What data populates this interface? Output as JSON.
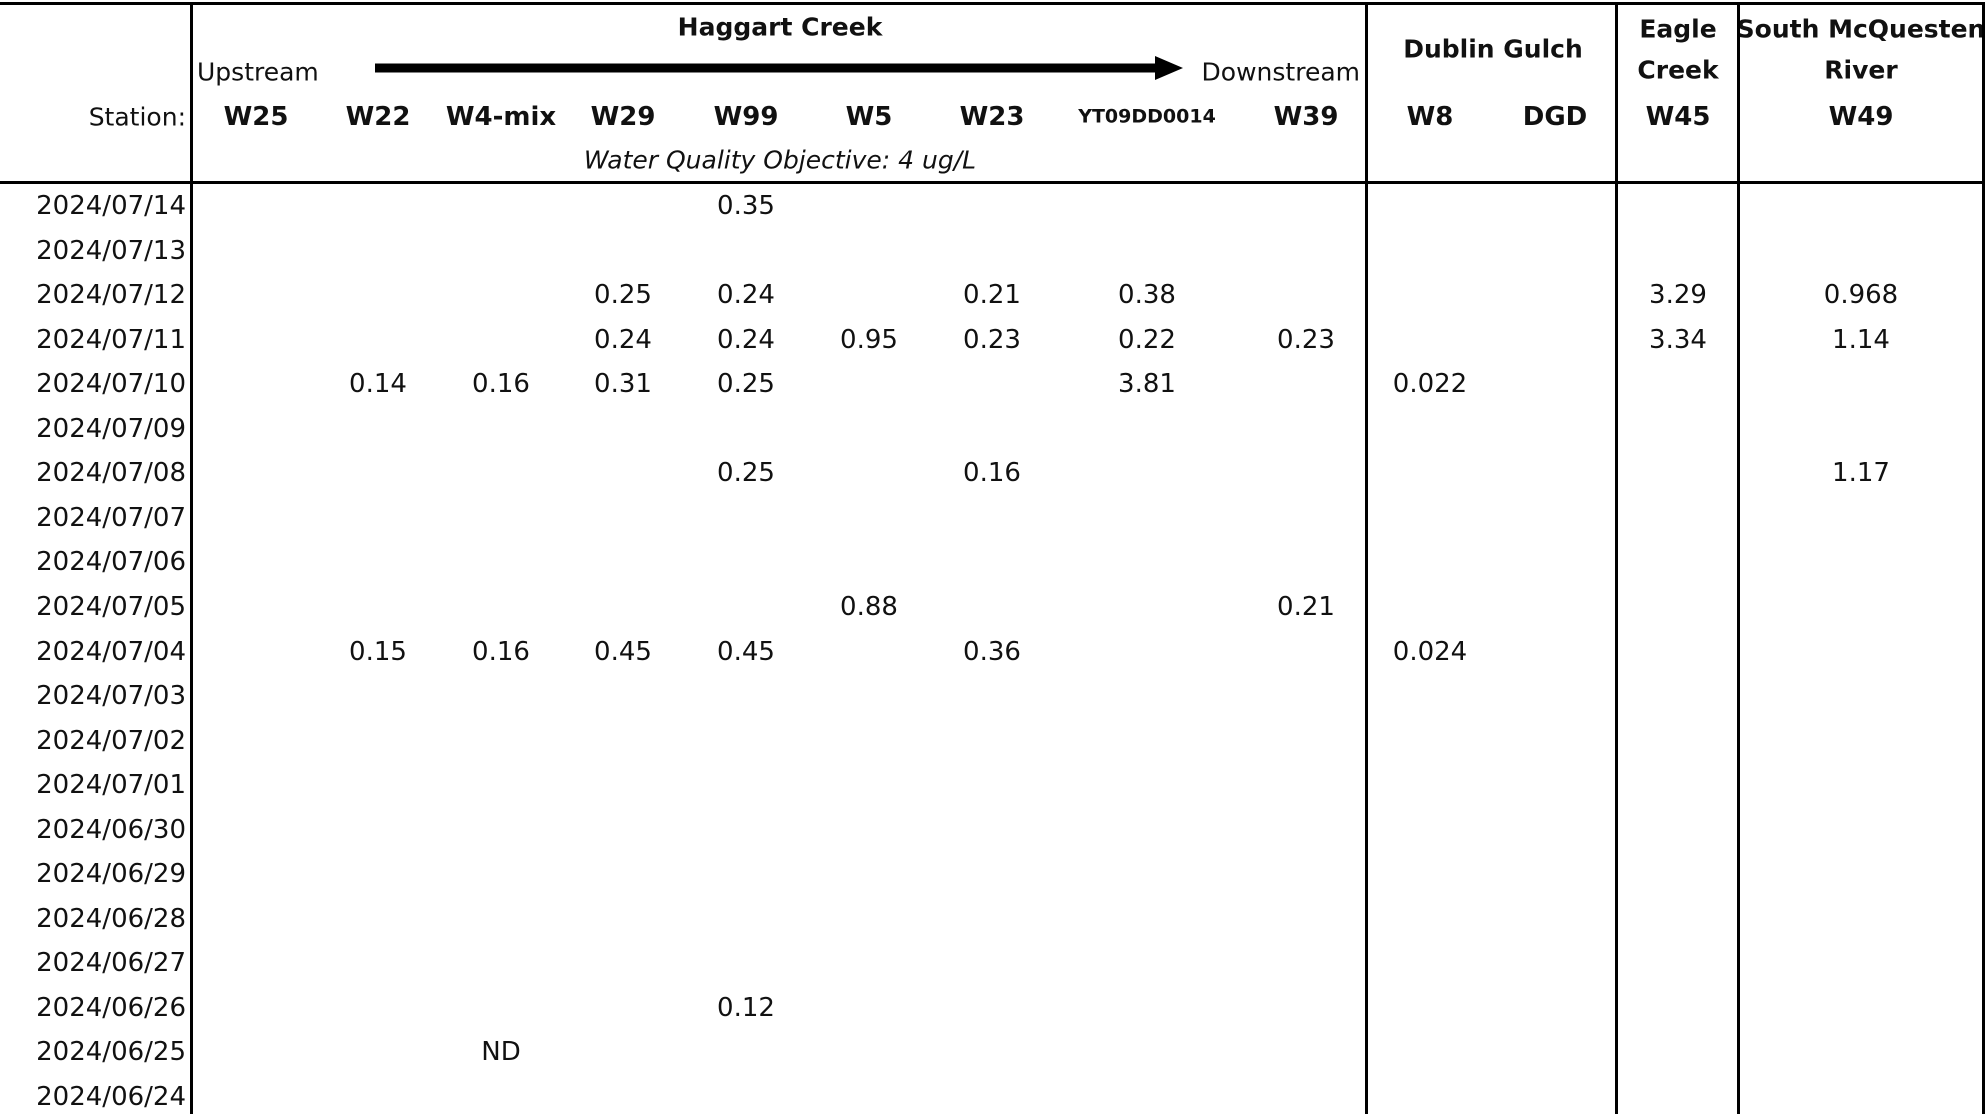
{
  "header": {
    "groups": {
      "haggart": "Haggart Creek",
      "dublin": "Dublin Gulch",
      "eagle_1": "Eagle",
      "eagle_2": "Creek",
      "smr_1": "South McQuesten",
      "smr_2": "River"
    },
    "upstream": "Upstream",
    "downstream": "Downstream",
    "station_label": "Station:",
    "stations": [
      "W25",
      "W22",
      "W4-mix",
      "W29",
      "W99",
      "W5",
      "W23",
      "YT09DD0014",
      "W39",
      "W8",
      "DGD",
      "W45",
      "W49"
    ],
    "wqo": "Water Quality Objective: 4 ug/L"
  },
  "dates": [
    "2024/07/14",
    "2024/07/13",
    "2024/07/12",
    "2024/07/11",
    "2024/07/10",
    "2024/07/09",
    "2024/07/08",
    "2024/07/07",
    "2024/07/06",
    "2024/07/05",
    "2024/07/04",
    "2024/07/03",
    "2024/07/02",
    "2024/07/01",
    "2024/06/30",
    "2024/06/29",
    "2024/06/28",
    "2024/06/27",
    "2024/06/26",
    "2024/06/25",
    "2024/06/24"
  ],
  "rows": [
    [
      "",
      "",
      "",
      "",
      "0.35",
      "",
      "",
      "",
      "",
      "",
      "",
      "",
      ""
    ],
    [
      "",
      "",
      "",
      "",
      "",
      "",
      "",
      "",
      "",
      "",
      "",
      "",
      ""
    ],
    [
      "",
      "",
      "",
      "0.25",
      "0.24",
      "",
      "0.21",
      "0.38",
      "",
      "",
      "",
      "3.29",
      "0.968"
    ],
    [
      "",
      "",
      "",
      "0.24",
      "0.24",
      "0.95",
      "0.23",
      "0.22",
      "0.23",
      "",
      "",
      "3.34",
      "1.14"
    ],
    [
      "",
      "0.14",
      "0.16",
      "0.31",
      "0.25",
      "",
      "",
      "3.81",
      "",
      "0.022",
      "",
      "",
      ""
    ],
    [
      "",
      "",
      "",
      "",
      "",
      "",
      "",
      "",
      "",
      "",
      "",
      "",
      ""
    ],
    [
      "",
      "",
      "",
      "",
      "0.25",
      "",
      "0.16",
      "",
      "",
      "",
      "",
      "",
      "1.17"
    ],
    [
      "",
      "",
      "",
      "",
      "",
      "",
      "",
      "",
      "",
      "",
      "",
      "",
      ""
    ],
    [
      "",
      "",
      "",
      "",
      "",
      "",
      "",
      "",
      "",
      "",
      "",
      "",
      ""
    ],
    [
      "",
      "",
      "",
      "",
      "",
      "0.88",
      "",
      "",
      "0.21",
      "",
      "",
      "",
      ""
    ],
    [
      "",
      "0.15",
      "0.16",
      "0.45",
      "0.45",
      "",
      "0.36",
      "",
      "",
      "0.024",
      "",
      "",
      ""
    ],
    [
      "",
      "",
      "",
      "",
      "",
      "",
      "",
      "",
      "",
      "",
      "",
      "",
      ""
    ],
    [
      "",
      "",
      "",
      "",
      "",
      "",
      "",
      "",
      "",
      "",
      "",
      "",
      ""
    ],
    [
      "",
      "",
      "",
      "",
      "",
      "",
      "",
      "",
      "",
      "",
      "",
      "",
      ""
    ],
    [
      "",
      "",
      "",
      "",
      "",
      "",
      "",
      "",
      "",
      "",
      "",
      "",
      ""
    ],
    [
      "",
      "",
      "",
      "",
      "",
      "",
      "",
      "",
      "",
      "",
      "",
      "",
      ""
    ],
    [
      "",
      "",
      "",
      "",
      "",
      "",
      "",
      "",
      "",
      "",
      "",
      "",
      ""
    ],
    [
      "",
      "",
      "",
      "",
      "",
      "",
      "",
      "",
      "",
      "",
      "",
      "",
      ""
    ],
    [
      "",
      "",
      "",
      "",
      "0.12",
      "",
      "",
      "",
      "",
      "",
      "",
      "",
      ""
    ],
    [
      "",
      "",
      "ND",
      "",
      "",
      "",
      "",
      "",
      "",
      "",
      "",
      "",
      ""
    ],
    [
      "",
      "",
      "",
      "",
      "",
      "",
      "",
      "",
      "",
      "",
      "",
      "",
      ""
    ]
  ]
}
